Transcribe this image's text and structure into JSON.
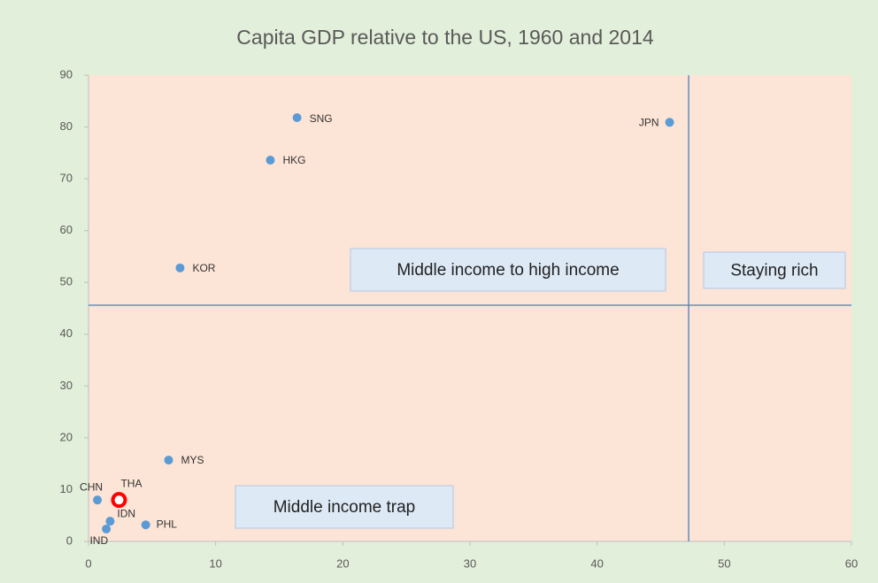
{
  "chart_data": {
    "type": "scatter",
    "title": "Capita GDP relative to the US, 1960 and 2014",
    "point_labels": [
      "SNG",
      "JPN",
      "HKG",
      "KOR",
      "MYS",
      "CHN",
      "THA",
      "IDN",
      "IND",
      "PHL"
    ],
    "x": [
      16.4,
      45.7,
      14.3,
      7.2,
      6.3,
      0.7,
      2.4,
      1.7,
      1.4,
      4.5
    ],
    "values": [
      81.8,
      80.9,
      73.6,
      52.8,
      15.7,
      8.0,
      8.0,
      3.9,
      2.4,
      3.2
    ],
    "colors": [
      "#5b9bd5",
      "#5b9bd5",
      "#5b9bd5",
      "#5b9bd5",
      "#5b9bd5",
      "#5b9bd5",
      "#ff0000",
      "#5b9bd5",
      "#5b9bd5",
      "#5b9bd5"
    ],
    "xlim": [
      0,
      60
    ],
    "xticks": [
      0,
      10,
      20,
      30,
      40,
      50,
      60
    ],
    "ylim": [
      0,
      90
    ],
    "yticks": [
      0,
      10,
      20,
      30,
      40,
      50,
      60,
      70,
      80,
      90
    ],
    "hline": 45.6,
    "vline": 47.2,
    "annotations": [
      "Middle income to high income",
      "Staying rich",
      "Middle income trap"
    ]
  }
}
